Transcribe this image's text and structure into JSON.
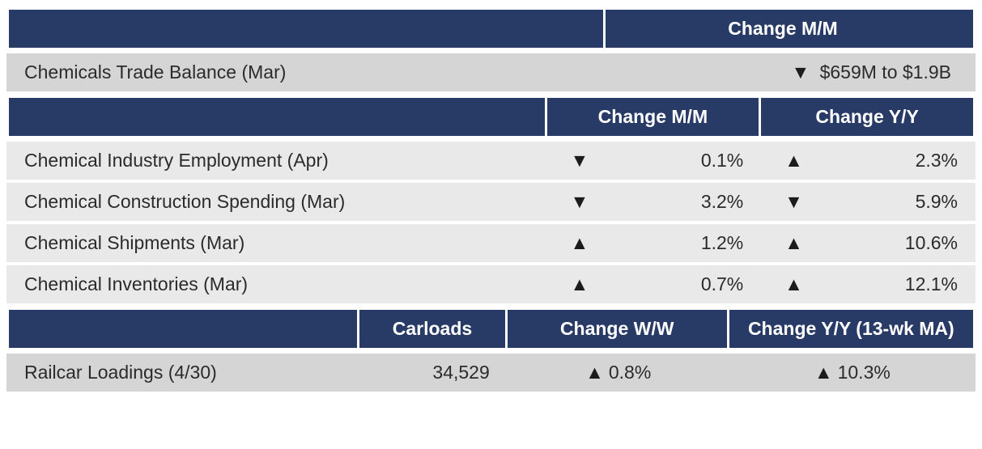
{
  "colors": {
    "header_bg": "#283a66",
    "header_fg": "#ffffff",
    "row_light": "#e9e9e9",
    "row_lighter": "#d5d5d5",
    "text": "#2b2b2b"
  },
  "section1": {
    "header_change": "Change M/M",
    "row": {
      "label": "Chemicals Trade Balance (Mar)",
      "direction": "down",
      "change_text": "$659M to $1.9B"
    }
  },
  "section2": {
    "header_mm": "Change M/M",
    "header_yy": "Change Y/Y",
    "rows": [
      {
        "label": "Chemical Industry Employment (Apr)",
        "mm_dir": "down",
        "mm_val": "0.1%",
        "yy_dir": "up",
        "yy_val": "2.3%"
      },
      {
        "label": "Chemical Construction Spending (Mar)",
        "mm_dir": "down",
        "mm_val": "3.2%",
        "yy_dir": "down",
        "yy_val": "5.9%"
      },
      {
        "label": "Chemical Shipments (Mar)",
        "mm_dir": "up",
        "mm_val": "1.2%",
        "yy_dir": "up",
        "yy_val": "10.6%"
      },
      {
        "label": "Chemical Inventories (Mar)",
        "mm_dir": "up",
        "mm_val": "0.7%",
        "yy_dir": "up",
        "yy_val": "12.1%"
      }
    ]
  },
  "section3": {
    "header_carloads": "Carloads",
    "header_ww": "Change W/W",
    "header_yy": "Change Y/Y (13-wk MA)",
    "row": {
      "label": "Railcar Loadings (4/30)",
      "carloads": "34,529",
      "ww_dir": "up",
      "ww_val": "0.8%",
      "yy_dir": "up",
      "yy_val": "10.3%"
    }
  }
}
